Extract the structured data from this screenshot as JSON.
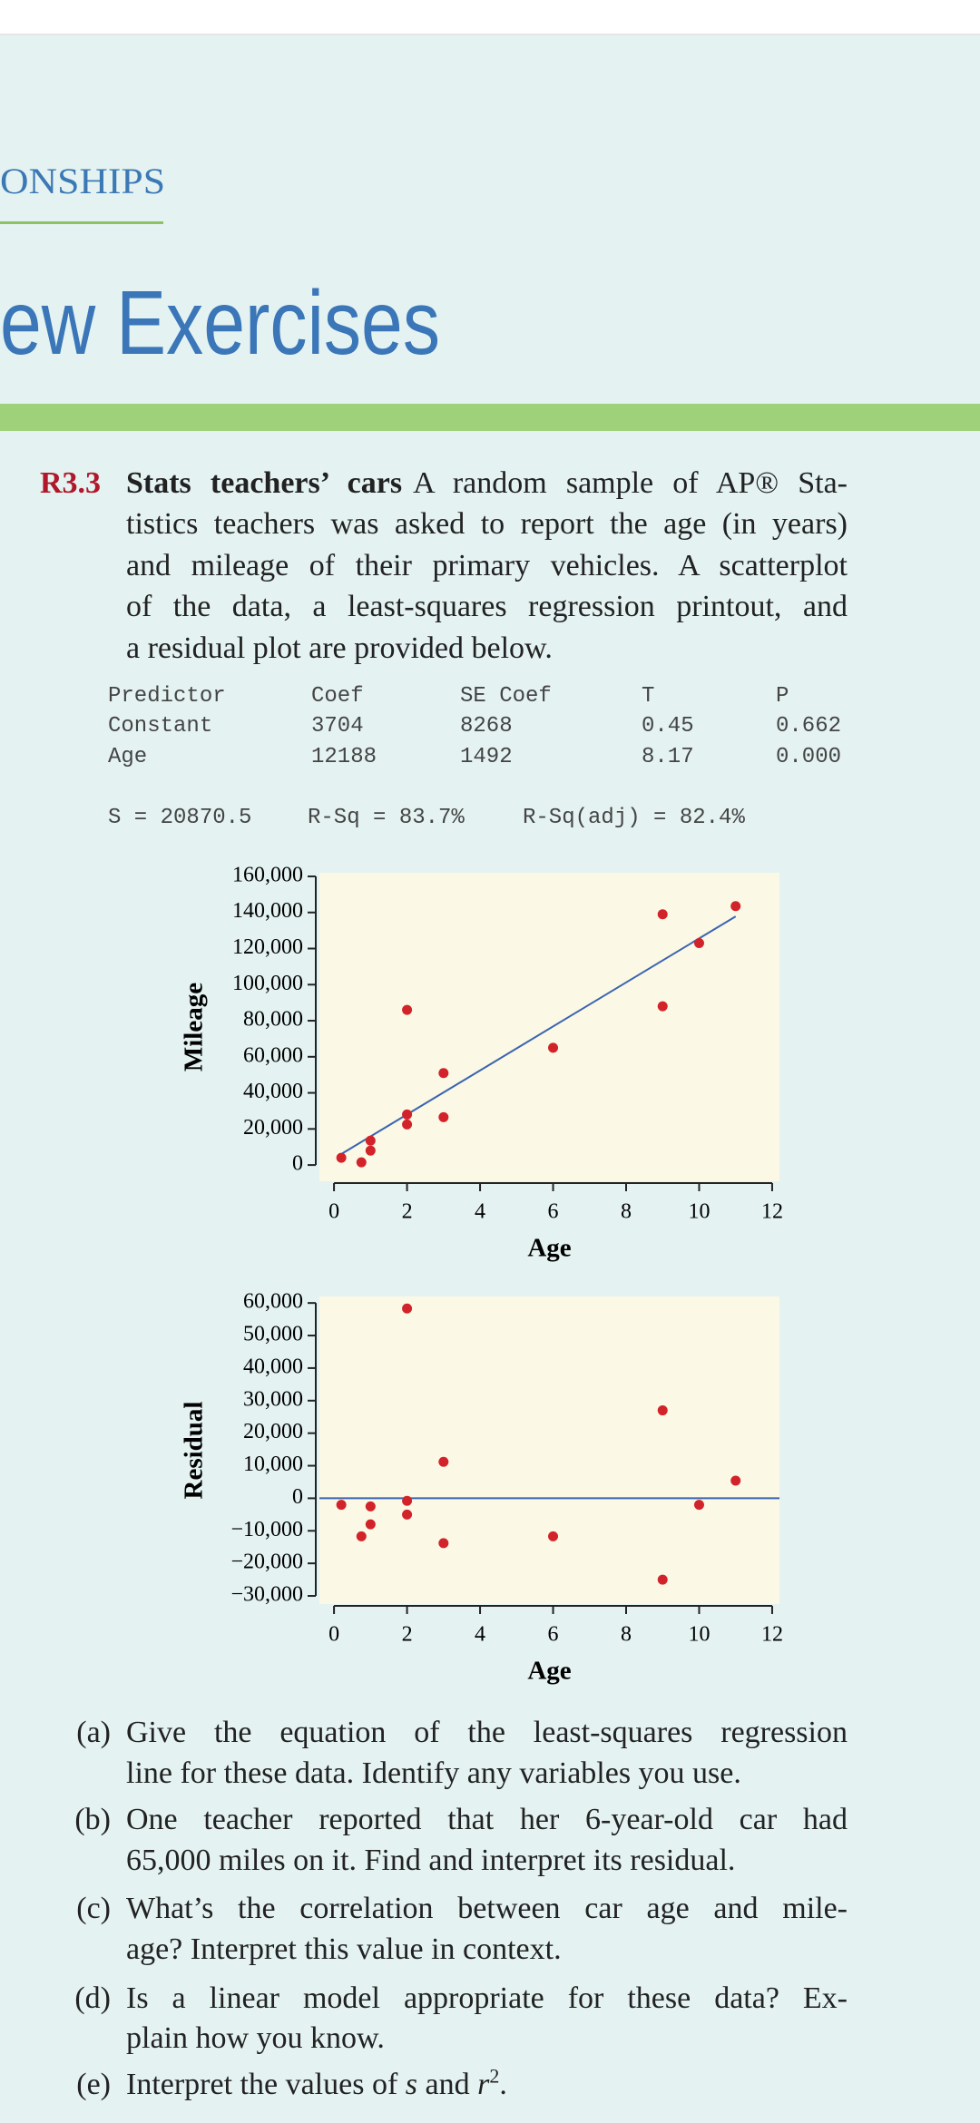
{
  "header": {
    "section": "ONSHIPS",
    "title": "ew Exercises"
  },
  "exercise": {
    "number": "R3.3",
    "title": "Stats teachers’ cars",
    "lines": [
      "A random sample of AP® Sta-",
      "tistics teachers was asked to report the age (in years)",
      "and mileage of their primary vehicles. A scatterplot",
      "of the data, a least-squares regression printout, and",
      "a residual plot are provided below."
    ]
  },
  "regression": {
    "header": [
      "Predictor",
      "Coef",
      "SE Coef",
      "T",
      "P"
    ],
    "rows": [
      [
        "Constant",
        "3704",
        "8268",
        "0.45",
        "0.662"
      ],
      [
        "Age",
        "12188",
        "1492",
        "8.17",
        "0.000"
      ]
    ],
    "summary": [
      "S = 20870.5",
      "R-Sq = 83.7%",
      "R-Sq(adj) = 82.4%"
    ]
  },
  "chart_data": [
    {
      "type": "scatter",
      "x_label": "Age",
      "y_label": "Mileage",
      "x": [
        0.2,
        0.75,
        1,
        1,
        2,
        2,
        2,
        3,
        3,
        6,
        9,
        9,
        10,
        11
      ],
      "values": [
        4000,
        1500,
        13500,
        8000,
        86000,
        28000,
        22500,
        51000,
        26500,
        65000,
        139000,
        88000,
        123000,
        143500
      ],
      "color": "#d2232a",
      "background": "#fbf8e5",
      "fit_line": {
        "x": [
          0.2,
          11
        ],
        "values": [
          6100,
          137800
        ],
        "color": "#3a64b0"
      },
      "xlim": [
        -0.4,
        12.2
      ],
      "ylim": [
        -9000,
        162000
      ],
      "xticks": [
        0,
        2,
        4,
        6,
        8,
        10,
        12
      ],
      "yticks": [
        0,
        {
          "value": 20000,
          "label": "20,000"
        },
        {
          "value": 40000,
          "label": "40,000"
        },
        {
          "value": 60000,
          "label": "60,000"
        },
        {
          "value": 80000,
          "label": "80,000"
        },
        {
          "value": 100000,
          "label": "100,000"
        },
        {
          "value": 120000,
          "label": "120,000"
        },
        {
          "value": 140000,
          "label": "140,000"
        },
        {
          "value": 160000,
          "label": "160,000"
        }
      ]
    },
    {
      "type": "scatter",
      "x_label": "Age",
      "y_label": "Residual",
      "x": [
        0.2,
        0.75,
        1,
        1,
        2,
        2,
        2,
        3,
        3,
        6,
        9,
        9,
        10,
        11
      ],
      "values": [
        -2000,
        -11700,
        -2500,
        -8000,
        58300,
        -800,
        -5000,
        11200,
        -13800,
        -11700,
        27000,
        -25000,
        -2000,
        5400
      ],
      "color": "#d2232a",
      "background": "#fbf8e5",
      "reference_line": {
        "value": 0,
        "color": "#3a64b0"
      },
      "xlim": [
        -0.4,
        12.2
      ],
      "ylim": [
        -32500,
        62000
      ],
      "xticks": [
        0,
        2,
        4,
        6,
        8,
        10,
        12
      ],
      "yticks": [
        {
          "value": -30000,
          "label": "−30,000"
        },
        {
          "value": -20000,
          "label": "−20,000"
        },
        {
          "value": -10000,
          "label": "−10,000"
        },
        0,
        {
          "value": 10000,
          "label": "10,000"
        },
        {
          "value": 20000,
          "label": "20,000"
        },
        {
          "value": 30000,
          "label": "30,000"
        },
        {
          "value": 40000,
          "label": "40,000"
        },
        {
          "value": 50000,
          "label": "50,000"
        },
        {
          "value": 60000,
          "label": "60,000"
        }
      ]
    }
  ],
  "questions": [
    {
      "label": "(a)",
      "lines": [
        "Give the equation of the least-squares regression",
        "line for these data. Identify any variables you use."
      ]
    },
    {
      "label": "(b)",
      "lines": [
        "One teacher reported that her 6-year-old car had",
        "65,000 miles on it. Find and interpret its residual."
      ]
    },
    {
      "label": "(c)",
      "lines": [
        "What’s the correlation between car age and mile-",
        "age? Interpret this value in context."
      ]
    },
    {
      "label": "(d)",
      "lines": [
        "Is a linear model appropriate for these data? Ex-",
        "plain how you know."
      ]
    },
    {
      "label": "(e)",
      "parts": [
        "Interpret the values of ",
        "s",
        " and ",
        "r",
        "2",
        "."
      ]
    }
  ]
}
